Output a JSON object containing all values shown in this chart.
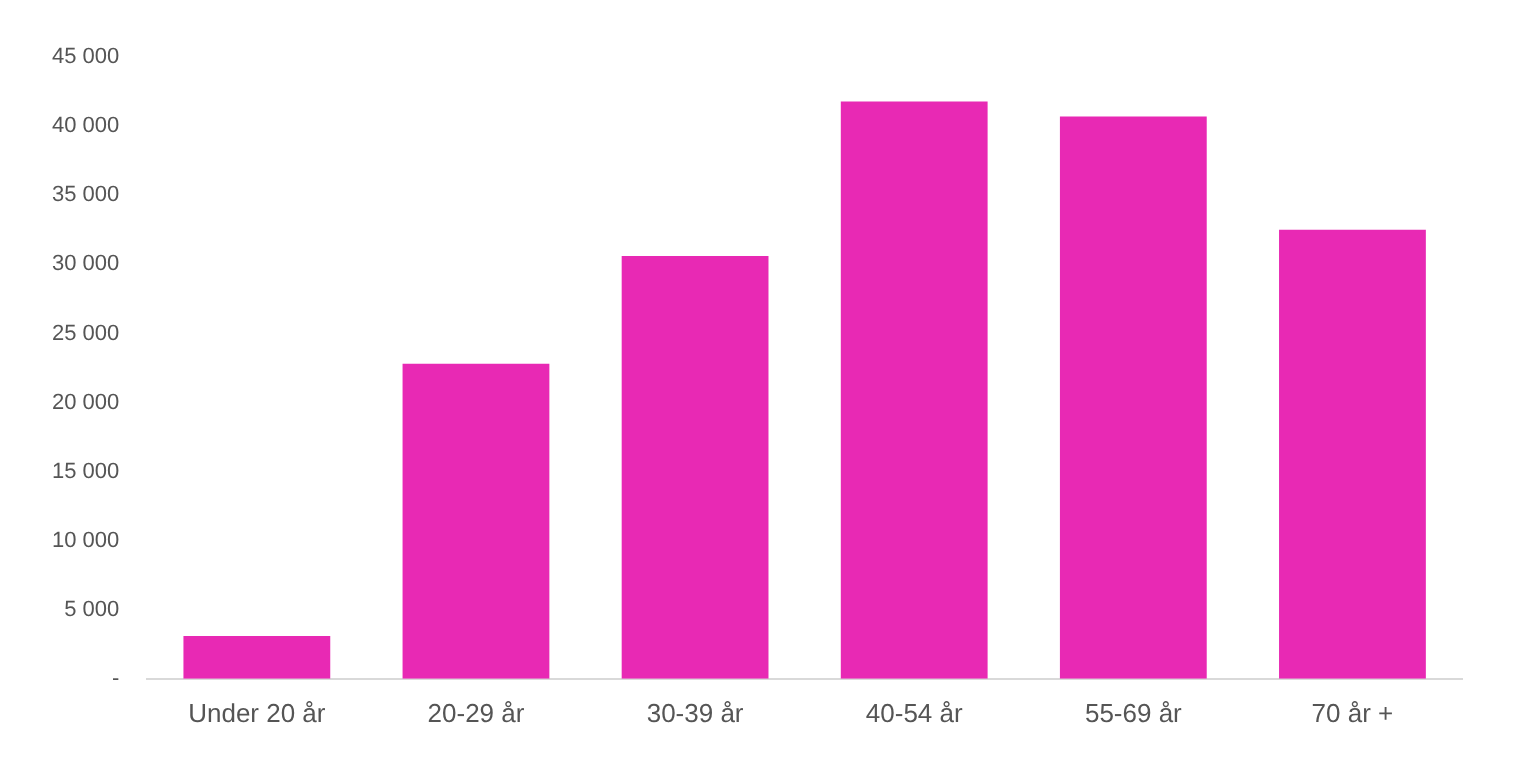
{
  "chart_data": {
    "type": "bar",
    "categories": [
      "Under 20 år",
      "20-29 år",
      "30-39 år",
      "40-54 år",
      "55-69 år",
      "70 år +"
    ],
    "values": [
      3100,
      22800,
      30600,
      41800,
      40700,
      32500
    ],
    "color": "#e829b4",
    "ylim": [
      0,
      45000
    ],
    "yticks": [
      {
        "value": 0,
        "label": "-"
      },
      {
        "value": 5000,
        "label": "5 000"
      },
      {
        "value": 10000,
        "label": "10 000"
      },
      {
        "value": 15000,
        "label": "15 000"
      },
      {
        "value": 20000,
        "label": "20 000"
      },
      {
        "value": 25000,
        "label": "25 000"
      },
      {
        "value": 30000,
        "label": "30 000"
      },
      {
        "value": 35000,
        "label": "35 000"
      },
      {
        "value": 40000,
        "label": "40 000"
      },
      {
        "value": 45000,
        "label": "45 000"
      }
    ],
    "grid": false,
    "legend": false
  }
}
